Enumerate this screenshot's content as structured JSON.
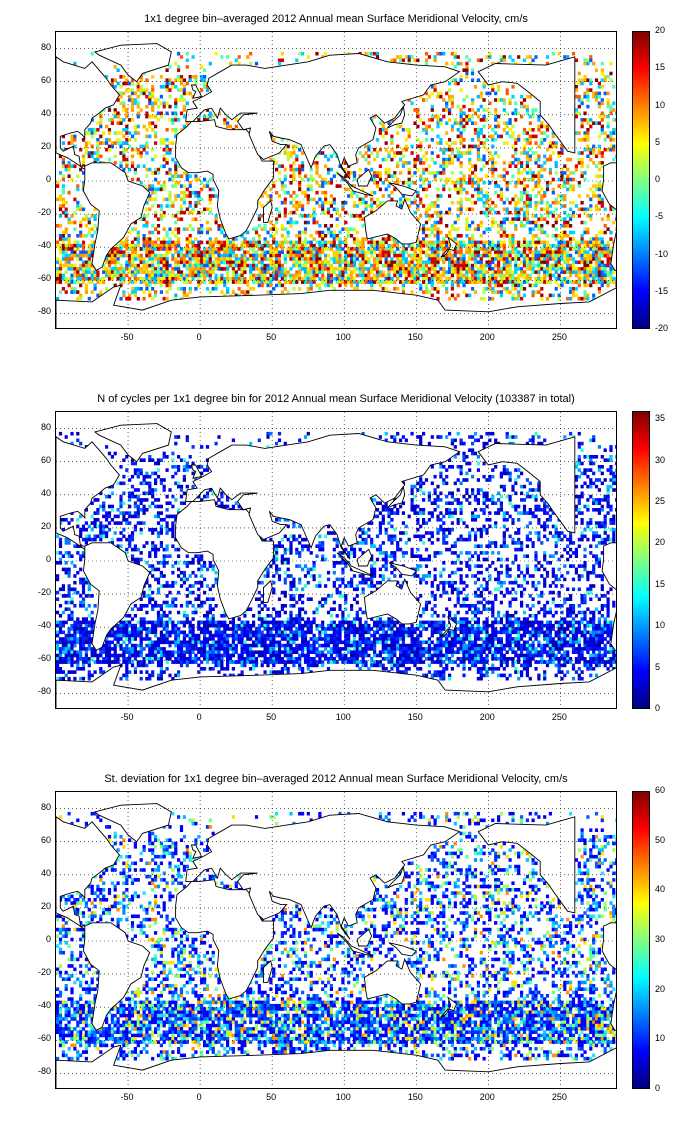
{
  "panels": [
    {
      "id": "velocity",
      "title": "1x1 degree bin–averaged 2012 Annual mean Surface Meridional Velocity, cm/s",
      "colorbar": {
        "ticks": [
          "20",
          "15",
          "10",
          "5",
          "0",
          "-5",
          "-10",
          "-15",
          "-20"
        ],
        "min": -20,
        "max": 20,
        "colormap": "jet"
      },
      "palette": [
        "#FFD000",
        "#FF9A00",
        "#D40000",
        "#8B0000",
        "#00B4FF",
        "#50FFAF",
        "#AFFF50",
        "#FFEF00",
        "#FFB300",
        "#00D2FF",
        "#0060FF",
        "#FF5A00"
      ]
    },
    {
      "id": "cycles",
      "title": "N of cycles per 1x1 degree bin for 2012 Annual mean Surface Meridional Velocity (103387 in total)",
      "colorbar": {
        "ticks": [
          "35",
          "30",
          "25",
          "20",
          "15",
          "10",
          "5",
          "0"
        ],
        "min": 0,
        "max": 36,
        "colormap": "jet"
      },
      "palette": [
        "#0000D0",
        "#0000FF",
        "#0010FF",
        "#0030FF",
        "#0050FF",
        "#0000B0",
        "#0080FF",
        "#00A0FF",
        "#1020E0",
        "#00C8FF",
        "#30FFD0"
      ]
    },
    {
      "id": "stddev",
      "title": "St. deviation for 1x1 degree bin–averaged 2012 Annual mean Surface Meridional Velocity, cm/s",
      "colorbar": {
        "ticks": [
          "60",
          "50",
          "40",
          "30",
          "20",
          "10",
          "0"
        ],
        "min": 0,
        "max": 60,
        "colormap": "jet"
      },
      "palette": [
        "#0000FF",
        "#0030FF",
        "#0060FF",
        "#0090FF",
        "#00C0FF",
        "#20E0FF",
        "#60FFA0",
        "#A0FF60",
        "#FFE000",
        "#FF9000"
      ]
    }
  ],
  "axes": {
    "x_ticks": [
      "-50",
      "0",
      "50",
      "100",
      "150",
      "200",
      "250"
    ],
    "y_ticks": [
      "80",
      "60",
      "40",
      "20",
      "0",
      "-20",
      "-40",
      "-60",
      "-80"
    ],
    "xlim": [
      -100,
      290
    ],
    "ylim": [
      -90,
      90
    ],
    "grid": "dotted"
  }
}
